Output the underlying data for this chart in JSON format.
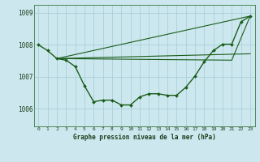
{
  "background_color": "#cce8ee",
  "grid_color": "#aad0da",
  "line_color": "#1a5c1a",
  "marker_color": "#1a5c1a",
  "title": "Graphe pression niveau de la mer (hPa)",
  "ylim": [
    1005.45,
    1009.25
  ],
  "xlim": [
    -0.5,
    23.5
  ],
  "yticks": [
    1006,
    1007,
    1008,
    1009
  ],
  "xtick_labels": [
    "0",
    "1",
    "2",
    "3",
    "4",
    "5",
    "6",
    "7",
    "8",
    "9",
    "10",
    "11",
    "12",
    "13",
    "14",
    "15",
    "16",
    "17",
    "18",
    "19",
    "20",
    "21",
    "22",
    "23"
  ],
  "xtick_positions": [
    0,
    1,
    2,
    3,
    4,
    5,
    6,
    7,
    8,
    9,
    10,
    11,
    12,
    13,
    14,
    15,
    16,
    17,
    18,
    19,
    20,
    21,
    22,
    23
  ],
  "series_main": {
    "x": [
      0,
      1,
      2,
      3,
      4,
      5,
      6,
      7,
      8,
      9,
      10,
      11,
      12,
      13,
      14,
      15,
      16,
      17,
      18,
      19,
      20,
      21,
      22,
      23
    ],
    "y": [
      1008.0,
      1007.82,
      1007.57,
      1007.52,
      1007.32,
      1006.72,
      1006.22,
      1006.27,
      1006.27,
      1006.12,
      1006.12,
      1006.37,
      1006.47,
      1006.47,
      1006.42,
      1006.42,
      1006.67,
      1007.02,
      1007.47,
      1007.82,
      1008.02,
      1008.02,
      1008.72,
      1008.9
    ],
    "linewidth": 1.0,
    "markersize": 2.0
  },
  "series_line1": {
    "x": [
      2,
      23
    ],
    "y": [
      1007.57,
      1008.9
    ],
    "linewidth": 0.8
  },
  "series_line2": {
    "x": [
      2,
      23
    ],
    "y": [
      1007.57,
      1007.72
    ],
    "linewidth": 0.8
  },
  "series_line3": {
    "x": [
      2,
      21,
      23
    ],
    "y": [
      1007.57,
      1007.52,
      1008.9
    ],
    "linewidth": 0.8
  }
}
